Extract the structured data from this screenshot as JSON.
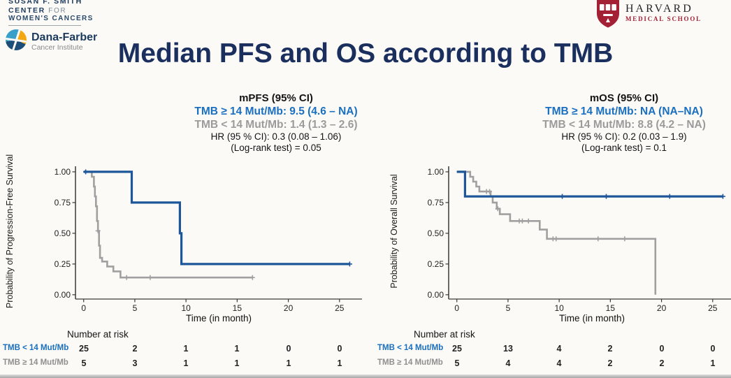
{
  "colors": {
    "title_navy": "#1b2f5e",
    "annotation_blue": "#1a6fbf",
    "annotation_gray": "#9b9b9b",
    "curve_blue": "#1e5799",
    "curve_gray": "#a0a0a0",
    "harvard_crimson": "#a32035",
    "dana_farber_navy": "#1b3a5c"
  },
  "header": {
    "susan_center": {
      "line1": "SUSAN F. SMITH",
      "line2_strong": "CENTER",
      "line2_light": "FOR",
      "line3": "WOMEN'S CANCERS"
    },
    "dana_farber": {
      "name": "Dana-Farber",
      "subtitle": "Cancer Institute"
    },
    "harvard": {
      "name": "HARVARD",
      "subtitle": "MEDICAL SCHOOL"
    }
  },
  "title": "Median PFS and OS according to TMB",
  "panels": [
    {
      "stats_title": "mPFS (95% CI)",
      "line_high": "TMB ≥ 14 Mut/Mb: 9.5 (4.6 – NA)",
      "line_low": "TMB < 14 Mut/Mb: 1.4 (1.3 – 2.6)",
      "hr_line": "HR (95 % CI): 0.3 (0.08 – 1.06)",
      "logrank_line": "(Log-rank test) = 0.05",
      "ylabel": "Probability of Progression-Free Survival"
    },
    {
      "stats_title": "mOS (95% CI)",
      "line_high": "TMB ≥ 14 Mut/Mb: NA (NA–NA)",
      "line_low": "TMB < 14 Mut/Mb: 8.8 (4.2 – NA)",
      "hr_line": "HR (95 % CI): 0.2 (0.03 – 1.9)",
      "logrank_line": "(Log-rank test) = 0.1",
      "ylabel": "Probability of Overall Survival"
    }
  ],
  "risk_tables": [
    {
      "header": "Number at risk",
      "rows": [
        {
          "label": "TMB < 14 Mut/Mb",
          "values": [
            "25",
            "2",
            "1",
            "1",
            "0",
            "0"
          ]
        },
        {
          "label": "TMB ≥ 14 Mut/Mb",
          "values": [
            "5",
            "3",
            "1",
            "1",
            "1",
            "1"
          ]
        }
      ]
    },
    {
      "header": "Number at risk",
      "rows": [
        {
          "label": "TMB < 14 Mut/Mb",
          "values": [
            "25",
            "13",
            "4",
            "2",
            "0",
            "0"
          ]
        },
        {
          "label": "TMB ≥ 14 Mut/Mb",
          "values": [
            "5",
            "4",
            "4",
            "2",
            "2",
            "1"
          ]
        }
      ]
    }
  ],
  "chart_data": [
    {
      "type": "line",
      "subtype": "kaplan-meier-step",
      "title": "mPFS (95% CI)",
      "xlabel": "Time (in month)",
      "ylabel": "Probability of Progression-Free Survival",
      "xlim": [
        0,
        26
      ],
      "ylim": [
        0,
        1
      ],
      "xticks": [
        0,
        5,
        10,
        15,
        20,
        25
      ],
      "yticks": [
        "0.00",
        "0.25",
        "0.50",
        "0.75",
        "1.00"
      ],
      "grid": false,
      "series": [
        {
          "name": "TMB ≥ 14 Mut/Mb",
          "color": "#1e5799",
          "width": 3.2,
          "points": [
            [
              0,
              1.0
            ],
            [
              4.7,
              1.0
            ],
            [
              4.7,
              0.75
            ],
            [
              9.4,
              0.75
            ],
            [
              9.4,
              0.5
            ],
            [
              9.55,
              0.5
            ],
            [
              9.55,
              0.25
            ],
            [
              26,
              0.25
            ]
          ],
          "censors": [
            [
              0.2,
              1.0
            ],
            [
              26,
              0.25
            ]
          ]
        },
        {
          "name": "TMB < 14 Mut/Mb",
          "color": "#a0a0a0",
          "width": 2.6,
          "points": [
            [
              0,
              1.0
            ],
            [
              0.8,
              1.0
            ],
            [
              0.8,
              0.96
            ],
            [
              1.0,
              0.96
            ],
            [
              1.0,
              0.88
            ],
            [
              1.1,
              0.88
            ],
            [
              1.1,
              0.8
            ],
            [
              1.2,
              0.8
            ],
            [
              1.2,
              0.72
            ],
            [
              1.3,
              0.72
            ],
            [
              1.3,
              0.6
            ],
            [
              1.4,
              0.6
            ],
            [
              1.4,
              0.52
            ],
            [
              1.5,
              0.52
            ],
            [
              1.5,
              0.4
            ],
            [
              1.6,
              0.4
            ],
            [
              1.6,
              0.3
            ],
            [
              1.8,
              0.3
            ],
            [
              1.8,
              0.27
            ],
            [
              2.3,
              0.27
            ],
            [
              2.3,
              0.23
            ],
            [
              2.9,
              0.23
            ],
            [
              2.9,
              0.19
            ],
            [
              3.6,
              0.19
            ],
            [
              3.6,
              0.14
            ],
            [
              16.5,
              0.14
            ]
          ],
          "censors": [
            [
              1.4,
              0.52
            ],
            [
              4.2,
              0.14
            ],
            [
              6.5,
              0.14
            ],
            [
              16.5,
              0.14
            ]
          ]
        }
      ]
    },
    {
      "type": "line",
      "subtype": "kaplan-meier-step",
      "title": "mOS (95% CI)",
      "xlabel": "Time (in month)",
      "ylabel": "Probability of Overall Survival",
      "xlim": [
        0,
        26
      ],
      "ylim": [
        0,
        1
      ],
      "xticks": [
        0,
        5,
        10,
        15,
        20,
        25
      ],
      "yticks": [
        "0.00",
        "0.25",
        "0.50",
        "0.75",
        "1.00"
      ],
      "grid": false,
      "series": [
        {
          "name": "TMB ≥ 14 Mut/Mb",
          "color": "#1e5799",
          "width": 3.2,
          "points": [
            [
              0,
              1.0
            ],
            [
              0.8,
              1.0
            ],
            [
              0.8,
              0.8
            ],
            [
              26,
              0.8
            ]
          ],
          "censors": [
            [
              10.3,
              0.8
            ],
            [
              14.6,
              0.8
            ],
            [
              20.8,
              0.8
            ],
            [
              26,
              0.8
            ]
          ]
        },
        {
          "name": "TMB < 14 Mut/Mb",
          "color": "#a0a0a0",
          "width": 2.6,
          "points": [
            [
              0,
              1.0
            ],
            [
              1.3,
              1.0
            ],
            [
              1.3,
              0.96
            ],
            [
              1.6,
              0.96
            ],
            [
              1.6,
              0.92
            ],
            [
              1.9,
              0.92
            ],
            [
              1.9,
              0.88
            ],
            [
              2.2,
              0.88
            ],
            [
              2.2,
              0.84
            ],
            [
              3.3,
              0.84
            ],
            [
              3.3,
              0.8
            ],
            [
              3.5,
              0.8
            ],
            [
              3.5,
              0.75
            ],
            [
              3.9,
              0.75
            ],
            [
              3.9,
              0.7
            ],
            [
              4.2,
              0.7
            ],
            [
              4.2,
              0.655
            ],
            [
              5.2,
              0.655
            ],
            [
              5.2,
              0.6
            ],
            [
              8.1,
              0.6
            ],
            [
              8.1,
              0.53
            ],
            [
              8.8,
              0.53
            ],
            [
              8.8,
              0.455
            ],
            [
              19.4,
              0.455
            ],
            [
              19.4,
              0.0
            ]
          ],
          "censors": [
            [
              2.9,
              0.84
            ],
            [
              3.2,
              0.84
            ],
            [
              4.0,
              0.7
            ],
            [
              6.1,
              0.6
            ],
            [
              6.4,
              0.6
            ],
            [
              7.0,
              0.6
            ],
            [
              9.4,
              0.455
            ],
            [
              9.7,
              0.455
            ],
            [
              13.8,
              0.455
            ],
            [
              16.4,
              0.455
            ]
          ]
        }
      ]
    }
  ]
}
